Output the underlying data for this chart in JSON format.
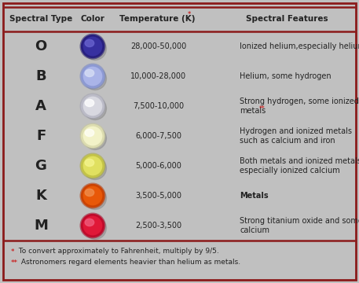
{
  "background_color": "#c0c0c0",
  "border_color": "#8b1a1a",
  "header_line_color": "#8b1a1a",
  "header_text_color": "#222222",
  "row_text_color": "#222222",
  "footnote_color": "#222222",
  "footnote_star_color": "#cc0000",
  "headers": [
    "Spectral Type",
    "Color",
    "Temperature (K)",
    "Spectral Features"
  ],
  "rows": [
    {
      "type": "O",
      "ball_color": "#3730a0",
      "ball_highlight": "#6a65d0",
      "ball_edge": "#1a1060",
      "temperature": "28,000-50,000",
      "features": "Ionized helium,especially helium",
      "features2": "",
      "star": false
    },
    {
      "type": "B",
      "ball_color": "#aab4e8",
      "ball_highlight": "#d8dff5",
      "ball_edge": "#7080c0",
      "temperature": "10,000-28,000",
      "features": "Helium, some hydrogen",
      "features2": "",
      "star": false
    },
    {
      "type": "A",
      "ball_color": "#d8d8e0",
      "ball_highlight": "#ffffff",
      "ball_edge": "#a0a0b0",
      "temperature": "7,500-10,000",
      "features": "Strong hydrogen, some ionized",
      "features2": "metals",
      "star": true
    },
    {
      "type": "F",
      "ball_color": "#f2f2c8",
      "ball_highlight": "#fffff8",
      "ball_edge": "#c8c898",
      "temperature": "6,000-7,500",
      "features": "Hydrogen and ionized metals",
      "features2": "such as calcium and iron",
      "star": false
    },
    {
      "type": "G",
      "ball_color": "#e0e060",
      "ball_highlight": "#f5f590",
      "ball_edge": "#a8a830",
      "temperature": "5,000-6,000",
      "features": "Both metals and ionized metals,",
      "features2": "especially ionized calcium",
      "star": false
    },
    {
      "type": "K",
      "ball_color": "#e85808",
      "ball_highlight": "#f09050",
      "ball_edge": "#b03000",
      "temperature": "3,500-5,000",
      "features": "Metals",
      "features2": "",
      "star": false,
      "bold": true
    },
    {
      "type": "M",
      "ball_color": "#e01838",
      "ball_highlight": "#f06080",
      "ball_edge": "#a00020",
      "temperature": "2,500-3,500",
      "features": "Strong titanium oxide and some",
      "features2": "calcium",
      "star": false
    }
  ],
  "footnote1_star": "*",
  "footnote1_text": " To convert approximately to Fahrenheit, multiply by 9/5.",
  "footnote2_star": "**",
  "footnote2_text": " Astronomers regard elements heavier than helium as metals.",
  "temp_star": "*"
}
